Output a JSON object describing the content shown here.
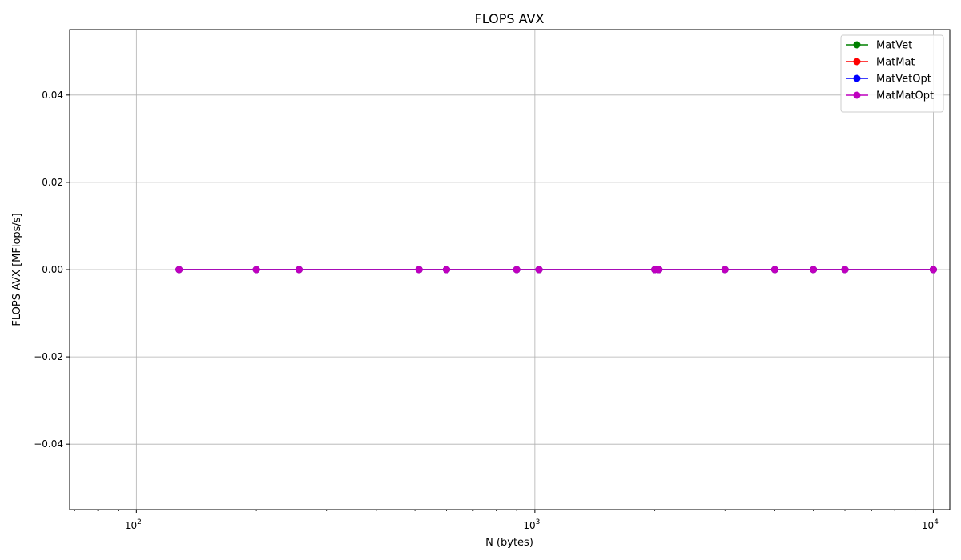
{
  "chart_data": {
    "type": "line",
    "title": "FLOPS AVX",
    "xlabel": "N (bytes)",
    "ylabel": "FLOPS AVX [MFlops/s]",
    "xscale": "log",
    "xlim": [
      68,
      11000
    ],
    "ylim": [
      -0.055,
      0.055
    ],
    "x_ticks": [
      {
        "value": 100,
        "base": "10",
        "exp": "2"
      },
      {
        "value": 1000,
        "base": "10",
        "exp": "3"
      },
      {
        "value": 10000,
        "base": "10",
        "exp": "4"
      }
    ],
    "y_ticks": [
      {
        "value": -0.04,
        "label": "−0.04"
      },
      {
        "value": -0.02,
        "label": "−0.02"
      },
      {
        "value": 0.0,
        "label": "0.00"
      },
      {
        "value": 0.02,
        "label": "0.02"
      },
      {
        "value": 0.04,
        "label": "0.04"
      }
    ],
    "grid": true,
    "legend_position": "top-right",
    "x": [
      128,
      200,
      256,
      512,
      600,
      900,
      1024,
      2000,
      2048,
      3000,
      4000,
      5000,
      6000,
      10000
    ],
    "series": [
      {
        "name": "MatVet",
        "color": "#008000",
        "values": [
          0,
          0,
          0,
          0,
          0,
          0,
          0,
          0,
          0,
          0,
          0,
          0,
          0,
          0
        ]
      },
      {
        "name": "MatMat",
        "color": "#ff0000",
        "values": [
          0,
          0,
          0,
          0,
          0,
          0,
          0,
          0,
          0,
          0,
          0,
          0,
          0,
          0
        ]
      },
      {
        "name": "MatVetOpt",
        "color": "#0000ff",
        "values": [
          0,
          0,
          0,
          0,
          0,
          0,
          0,
          0,
          0,
          0,
          0,
          0,
          0,
          0
        ]
      },
      {
        "name": "MatMatOpt",
        "color": "#bf00bf",
        "values": [
          0,
          0,
          0,
          0,
          0,
          0,
          0,
          0,
          0,
          0,
          0,
          0,
          0,
          0
        ]
      }
    ]
  }
}
